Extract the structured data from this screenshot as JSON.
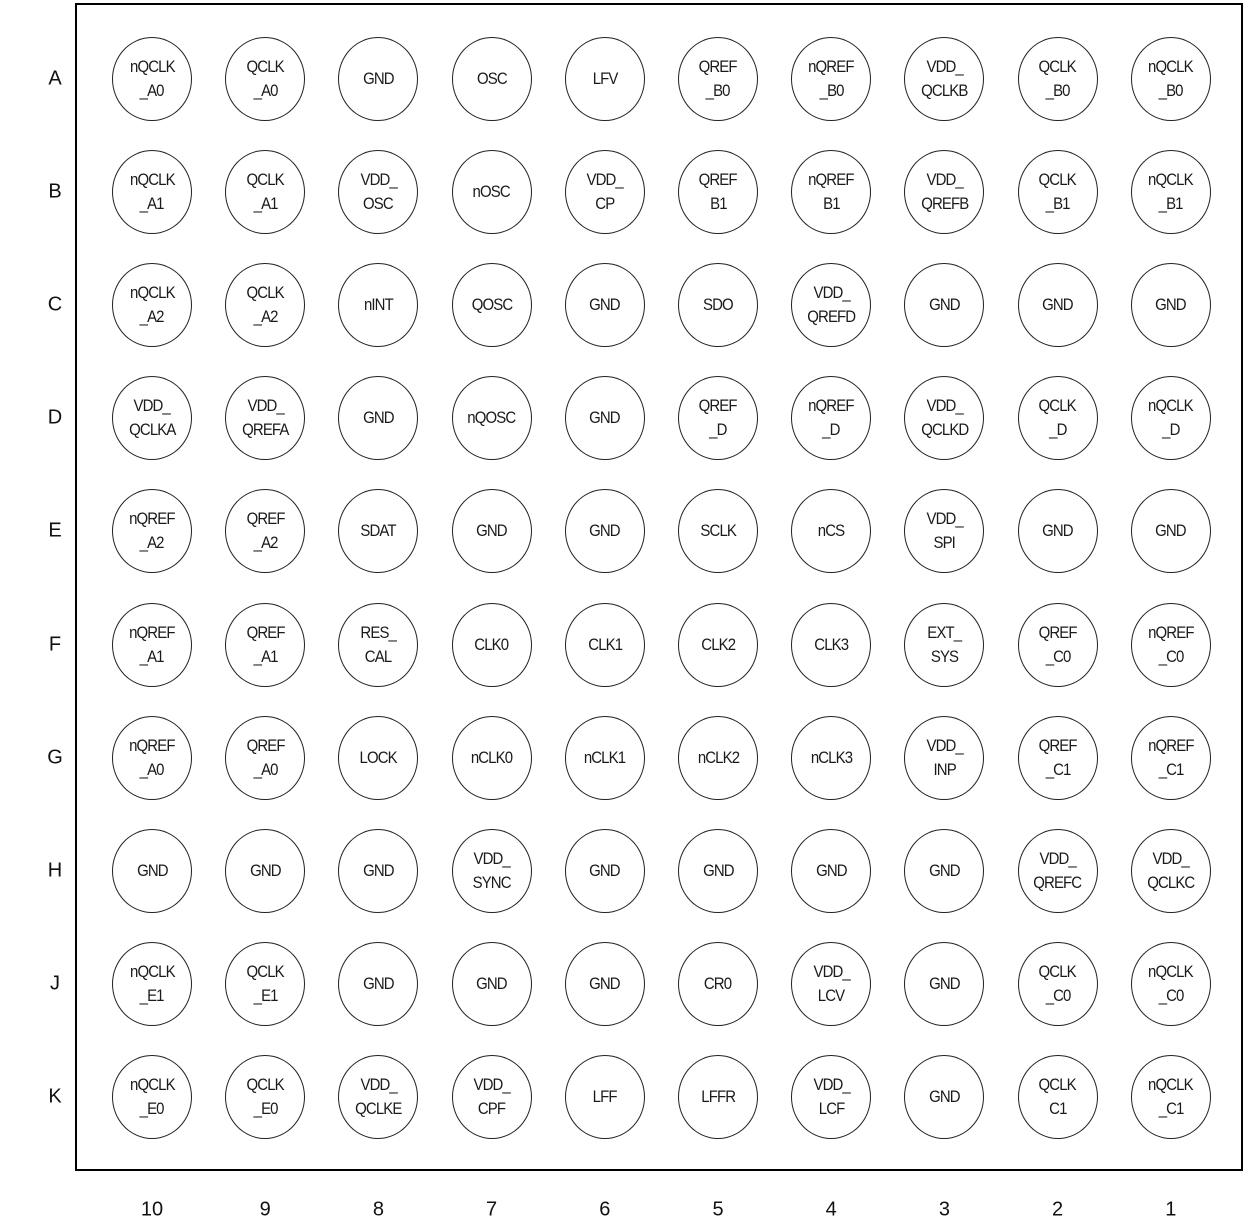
{
  "columns": [
    "10",
    "9",
    "8",
    "7",
    "6",
    "5",
    "4",
    "3",
    "2",
    "1"
  ],
  "rows": [
    {
      "label": "A",
      "pins": [
        [
          "nQCLK",
          "_A0"
        ],
        [
          "QCLK",
          "_A0"
        ],
        [
          "GND"
        ],
        [
          "OSC"
        ],
        [
          "LFV"
        ],
        [
          "QREF",
          "_B0"
        ],
        [
          "nQREF",
          "_B0"
        ],
        [
          "VDD_",
          "QCLKB"
        ],
        [
          "QCLK",
          "_B0"
        ],
        [
          "nQCLK",
          "_B0"
        ]
      ]
    },
    {
      "label": "B",
      "pins": [
        [
          "nQCLK",
          "_A1"
        ],
        [
          "QCLK",
          "_A1"
        ],
        [
          "VDD_",
          "OSC"
        ],
        [
          "nOSC"
        ],
        [
          "VDD_",
          "CP"
        ],
        [
          "QREF",
          "B1"
        ],
        [
          "nQREF",
          "B1"
        ],
        [
          "VDD_",
          "QREFB"
        ],
        [
          "QCLK",
          "_B1"
        ],
        [
          "nQCLK",
          "_B1"
        ]
      ]
    },
    {
      "label": "C",
      "pins": [
        [
          "nQCLK",
          "_A2"
        ],
        [
          "QCLK",
          "_A2"
        ],
        [
          "nINT"
        ],
        [
          "QOSC"
        ],
        [
          "GND"
        ],
        [
          "SDO"
        ],
        [
          "VDD_",
          "QREFD"
        ],
        [
          "GND"
        ],
        [
          "GND"
        ],
        [
          "GND"
        ]
      ]
    },
    {
      "label": "D",
      "pins": [
        [
          "VDD_",
          "QCLKA"
        ],
        [
          "VDD_",
          "QREFA"
        ],
        [
          "GND"
        ],
        [
          "nQOSC"
        ],
        [
          "GND"
        ],
        [
          "QREF",
          "_D"
        ],
        [
          "nQREF",
          "_D"
        ],
        [
          "VDD_",
          "QCLKD"
        ],
        [
          "QCLK",
          "_D"
        ],
        [
          "nQCLK",
          "_D"
        ]
      ]
    },
    {
      "label": "E",
      "pins": [
        [
          "nQREF",
          "_A2"
        ],
        [
          "QREF",
          "_A2"
        ],
        [
          "SDAT"
        ],
        [
          "GND"
        ],
        [
          "GND"
        ],
        [
          "SCLK"
        ],
        [
          "nCS"
        ],
        [
          "VDD_",
          "SPI"
        ],
        [
          "GND"
        ],
        [
          "GND"
        ]
      ]
    },
    {
      "label": "F",
      "pins": [
        [
          "nQREF",
          "_A1"
        ],
        [
          "QREF",
          "_A1"
        ],
        [
          "RES_",
          "CAL"
        ],
        [
          "CLK0"
        ],
        [
          "CLK1"
        ],
        [
          "CLK2"
        ],
        [
          "CLK3"
        ],
        [
          "EXT_",
          "SYS"
        ],
        [
          "QREF",
          "_C0"
        ],
        [
          "nQREF",
          "_C0"
        ]
      ]
    },
    {
      "label": "G",
      "pins": [
        [
          "nQREF",
          "_A0"
        ],
        [
          "QREF",
          "_A0"
        ],
        [
          "LOCK"
        ],
        [
          "nCLK0"
        ],
        [
          "nCLK1"
        ],
        [
          "nCLK2"
        ],
        [
          "nCLK3"
        ],
        [
          "VDD_",
          "INP"
        ],
        [
          "QREF",
          "_C1"
        ],
        [
          "nQREF",
          "_C1"
        ]
      ]
    },
    {
      "label": "H",
      "pins": [
        [
          "GND"
        ],
        [
          "GND"
        ],
        [
          "GND"
        ],
        [
          "VDD_",
          "SYNC"
        ],
        [
          "GND"
        ],
        [
          "GND"
        ],
        [
          "GND"
        ],
        [
          "GND"
        ],
        [
          "VDD_",
          "QREFC"
        ],
        [
          "VDD_",
          "QCLKC"
        ]
      ]
    },
    {
      "label": "J",
      "pins": [
        [
          "nQCLK",
          "_E1"
        ],
        [
          "QCLK",
          "_E1"
        ],
        [
          "GND"
        ],
        [
          "GND"
        ],
        [
          "GND"
        ],
        [
          "CR0"
        ],
        [
          "VDD_",
          "LCV"
        ],
        [
          "GND"
        ],
        [
          "QCLK",
          "_C0"
        ],
        [
          "nQCLK",
          "_C0"
        ]
      ]
    },
    {
      "label": "K",
      "pins": [
        [
          "nQCLK",
          "_E0"
        ],
        [
          "QCLK",
          "_E0"
        ],
        [
          "VDD_",
          "QCLKE"
        ],
        [
          "VDD_",
          "CPF"
        ],
        [
          "LFF"
        ],
        [
          "LFFR"
        ],
        [
          "VDD_",
          "LCF"
        ],
        [
          "GND"
        ],
        [
          "QCLK",
          "C1"
        ],
        [
          "nQCLK",
          "_C1"
        ]
      ]
    }
  ]
}
